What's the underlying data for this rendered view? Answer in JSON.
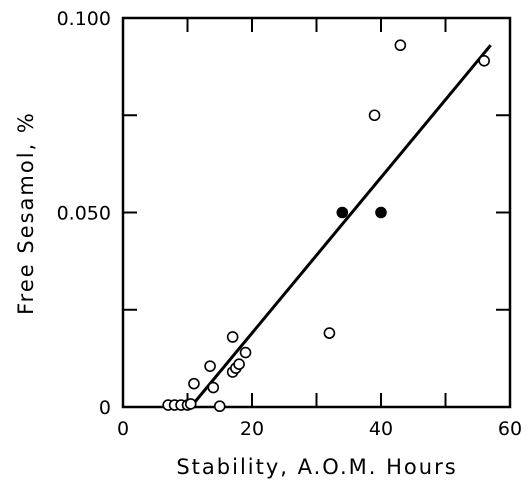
{
  "chart_data": {
    "type": "scatter",
    "xlabel": "Stability, A.O.M. Hours",
    "ylabel": "Free Sesamol, %",
    "xlim": [
      0,
      60
    ],
    "ylim": [
      0,
      0.1
    ],
    "x_ticks": [
      0,
      20,
      40,
      60
    ],
    "x_tick_labels": [
      "0",
      "20",
      "40",
      "60"
    ],
    "y_ticks": [
      0,
      0.05,
      0.1
    ],
    "y_tick_labels": [
      "0",
      "0.050",
      "0.100"
    ],
    "minor_y_ticks": [
      0.025,
      0.075
    ],
    "minor_x_ticks": [
      10,
      30,
      50
    ],
    "grid": false,
    "series": [
      {
        "marker": "open-circle",
        "points": [
          [
            7,
            0.0005
          ],
          [
            8,
            0.0005
          ],
          [
            9,
            0.0005
          ],
          [
            10,
            0.0005
          ],
          [
            10.5,
            0.0008
          ],
          [
            11,
            0.006
          ],
          [
            13.5,
            0.0105
          ],
          [
            14,
            0.005
          ],
          [
            15,
            0.0002
          ],
          [
            17,
            0.018
          ],
          [
            17,
            0.009
          ],
          [
            17.5,
            0.01
          ],
          [
            18,
            0.011
          ],
          [
            19,
            0.014
          ],
          [
            32,
            0.019
          ],
          [
            39,
            0.075
          ],
          [
            43,
            0.093
          ],
          [
            56,
            0.089
          ]
        ]
      },
      {
        "marker": "filled-circle",
        "points": [
          [
            34,
            0.05
          ],
          [
            40,
            0.05
          ]
        ]
      }
    ],
    "fit_line": {
      "from": [
        11,
        0.001
      ],
      "to": [
        57,
        0.093
      ]
    }
  }
}
